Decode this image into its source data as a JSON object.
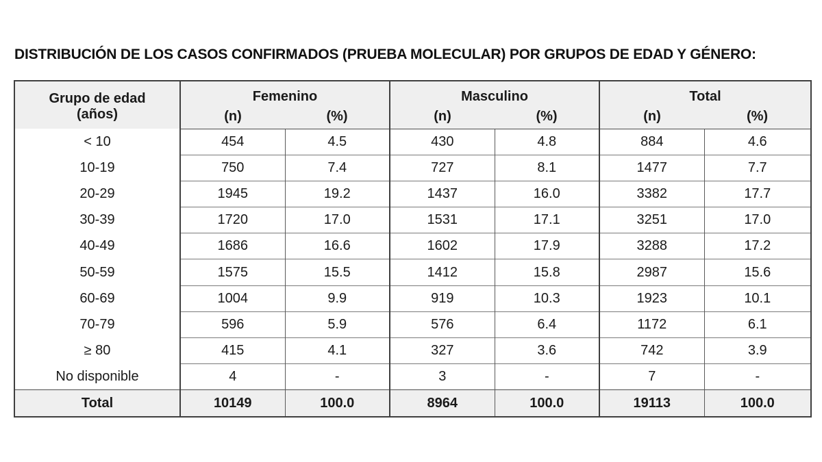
{
  "title": "DISTRIBUCIÓN DE LOS CASOS CONFIRMADOS (PRUEBA MOLECULAR) POR GRUPOS DE EDAD Y GÉNERO:",
  "colors": {
    "header_background": "#efefef",
    "total_row_background": "#efefef",
    "outer_border": "#3f3f3f",
    "inner_border": "#7a7a7a",
    "text": "#1a1a1a"
  },
  "chart_data": {
    "type": "table",
    "title": "DISTRIBUCIÓN DE LOS CASOS CONFIRMADOS (PRUEBA MOLECULAR) POR GRUPOS DE EDAD Y GÉNERO:",
    "age_header": [
      "Grupo de edad",
      "(años)"
    ],
    "group_headers": [
      "Femenino",
      "Masculino",
      "Total"
    ],
    "sub_headers": [
      "(n)",
      "(%)",
      "(n)",
      "(%)",
      "(n)",
      "(%)"
    ],
    "rows": [
      [
        "< 10",
        "454",
        "4.5",
        "430",
        "4.8",
        "884",
        "4.6"
      ],
      [
        "10-19",
        "750",
        "7.4",
        "727",
        "8.1",
        "1477",
        "7.7"
      ],
      [
        "20-29",
        "1945",
        "19.2",
        "1437",
        "16.0",
        "3382",
        "17.7"
      ],
      [
        "30-39",
        "1720",
        "17.0",
        "1531",
        "17.1",
        "3251",
        "17.0"
      ],
      [
        "40-49",
        "1686",
        "16.6",
        "1602",
        "17.9",
        "3288",
        "17.2"
      ],
      [
        "50-59",
        "1575",
        "15.5",
        "1412",
        "15.8",
        "2987",
        "15.6"
      ],
      [
        "60-69",
        "1004",
        "9.9",
        "919",
        "10.3",
        "1923",
        "10.1"
      ],
      [
        "70-79",
        "596",
        "5.9",
        "576",
        "6.4",
        "1172",
        "6.1"
      ],
      [
        "≥ 80",
        "415",
        "4.1",
        "327",
        "3.6",
        "742",
        "3.9"
      ],
      [
        "No disponible",
        "4",
        "-",
        "3",
        "-",
        "7",
        "-"
      ]
    ],
    "total_row": [
      "Total",
      "10149",
      "100.0",
      "8964",
      "100.0",
      "19113",
      "100.0"
    ]
  }
}
